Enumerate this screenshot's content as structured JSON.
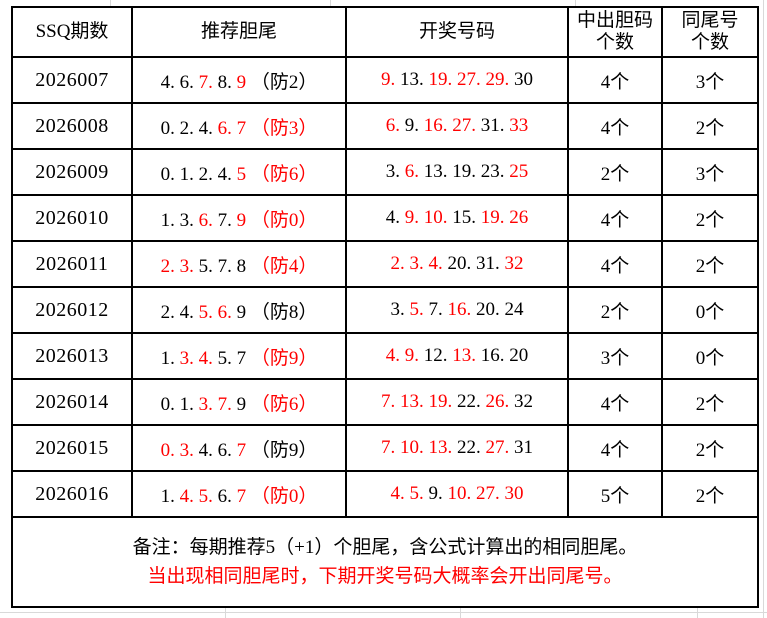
{
  "colors": {
    "red": "#ff0000",
    "black": "#000000",
    "border": "#000000",
    "gridline": "#d9d9d9"
  },
  "table": {
    "headers": [
      {
        "lines": [
          "SSQ期数"
        ]
      },
      {
        "lines": [
          "推荐胆尾"
        ]
      },
      {
        "lines": [
          "开奖号码"
        ]
      },
      {
        "lines": [
          "中出胆码",
          "个数"
        ]
      },
      {
        "lines": [
          "同尾号",
          "个数"
        ]
      }
    ],
    "rows": [
      {
        "period": "2026007",
        "tail": [
          {
            "t": "4. 6. ",
            "c": "black"
          },
          {
            "t": "7. ",
            "c": "red"
          },
          {
            "t": "8. ",
            "c": "black"
          },
          {
            "t": "9 ",
            "c": "red"
          },
          {
            "t": "（防2）",
            "c": "black"
          }
        ],
        "numbers": [
          {
            "t": "9. ",
            "c": "red"
          },
          {
            "t": "13. ",
            "c": "black"
          },
          {
            "t": "19. 27. 29. ",
            "c": "red"
          },
          {
            "t": "30",
            "c": "black"
          }
        ],
        "hit_count": "4个",
        "same_tail_count": "3个"
      },
      {
        "period": "2026008",
        "tail": [
          {
            "t": "0. 2. 4. ",
            "c": "black"
          },
          {
            "t": "6. 7 ",
            "c": "red"
          },
          {
            "t": "（防3）",
            "c": "red"
          }
        ],
        "numbers": [
          {
            "t": "6. ",
            "c": "red"
          },
          {
            "t": "9. ",
            "c": "black"
          },
          {
            "t": "16. 27. ",
            "c": "red"
          },
          {
            "t": "31. ",
            "c": "black"
          },
          {
            "t": "33",
            "c": "red"
          }
        ],
        "hit_count": "4个",
        "same_tail_count": "2个"
      },
      {
        "period": "2026009",
        "tail": [
          {
            "t": "0. 1. 2. 4. ",
            "c": "black"
          },
          {
            "t": "5 ",
            "c": "red"
          },
          {
            "t": "（防6）",
            "c": "red"
          }
        ],
        "numbers": [
          {
            "t": "3. ",
            "c": "black"
          },
          {
            "t": "6. ",
            "c": "red"
          },
          {
            "t": "13. 19. 23. ",
            "c": "black"
          },
          {
            "t": "25",
            "c": "red"
          }
        ],
        "hit_count": "2个",
        "same_tail_count": "3个"
      },
      {
        "period": "2026010",
        "tail": [
          {
            "t": "1. 3. ",
            "c": "black"
          },
          {
            "t": "6. ",
            "c": "red"
          },
          {
            "t": "7. ",
            "c": "black"
          },
          {
            "t": "9 ",
            "c": "red"
          },
          {
            "t": "（防0）",
            "c": "red"
          }
        ],
        "numbers": [
          {
            "t": "4. ",
            "c": "black"
          },
          {
            "t": "9. 10. ",
            "c": "red"
          },
          {
            "t": "15. ",
            "c": "black"
          },
          {
            "t": "19. 26",
            "c": "red"
          }
        ],
        "hit_count": "4个",
        "same_tail_count": "2个"
      },
      {
        "period": "2026011",
        "tail": [
          {
            "t": "2. 3. ",
            "c": "red"
          },
          {
            "t": "5. 7. 8 ",
            "c": "black"
          },
          {
            "t": "（防4）",
            "c": "red"
          }
        ],
        "numbers": [
          {
            "t": "2. 3. 4. ",
            "c": "red"
          },
          {
            "t": "20. 31. ",
            "c": "black"
          },
          {
            "t": "32",
            "c": "red"
          }
        ],
        "hit_count": "4个",
        "same_tail_count": "2个"
      },
      {
        "period": "2026012",
        "tail": [
          {
            "t": "2. 4. ",
            "c": "black"
          },
          {
            "t": "5. 6. ",
            "c": "red"
          },
          {
            "t": "9 ",
            "c": "black"
          },
          {
            "t": "（防8）",
            "c": "black"
          }
        ],
        "numbers": [
          {
            "t": "3. ",
            "c": "black"
          },
          {
            "t": "5. ",
            "c": "red"
          },
          {
            "t": "7. ",
            "c": "black"
          },
          {
            "t": "16. ",
            "c": "red"
          },
          {
            "t": "20. 24",
            "c": "black"
          }
        ],
        "hit_count": "2个",
        "same_tail_count": "0个"
      },
      {
        "period": "2026013",
        "tail": [
          {
            "t": "1. ",
            "c": "black"
          },
          {
            "t": "3. 4. ",
            "c": "red"
          },
          {
            "t": "5. 7 ",
            "c": "black"
          },
          {
            "t": "（防9）",
            "c": "red"
          }
        ],
        "numbers": [
          {
            "t": "4. 9. ",
            "c": "red"
          },
          {
            "t": "12. ",
            "c": "black"
          },
          {
            "t": "13. ",
            "c": "red"
          },
          {
            "t": "16. 20",
            "c": "black"
          }
        ],
        "hit_count": "3个",
        "same_tail_count": "0个"
      },
      {
        "period": "2026014",
        "tail": [
          {
            "t": "0. 1. ",
            "c": "black"
          },
          {
            "t": "3. 7. ",
            "c": "red"
          },
          {
            "t": "9 ",
            "c": "black"
          },
          {
            "t": "（防6）",
            "c": "red"
          }
        ],
        "numbers": [
          {
            "t": "7. 13. 19. ",
            "c": "red"
          },
          {
            "t": "22. ",
            "c": "black"
          },
          {
            "t": "26. ",
            "c": "red"
          },
          {
            "t": "32",
            "c": "black"
          }
        ],
        "hit_count": "4个",
        "same_tail_count": "2个"
      },
      {
        "period": "2026015",
        "tail": [
          {
            "t": "0. 3. ",
            "c": "red"
          },
          {
            "t": "4. 6. ",
            "c": "black"
          },
          {
            "t": "7 ",
            "c": "red"
          },
          {
            "t": "（防9）",
            "c": "black"
          }
        ],
        "numbers": [
          {
            "t": "7. 10. 13. ",
            "c": "red"
          },
          {
            "t": "22. ",
            "c": "black"
          },
          {
            "t": "27. ",
            "c": "red"
          },
          {
            "t": "31",
            "c": "black"
          }
        ],
        "hit_count": "4个",
        "same_tail_count": "2个"
      },
      {
        "period": "2026016",
        "tail": [
          {
            "t": "1. ",
            "c": "black"
          },
          {
            "t": "4. 5. ",
            "c": "red"
          },
          {
            "t": "6. ",
            "c": "black"
          },
          {
            "t": "7 ",
            "c": "red"
          },
          {
            "t": "（防0）",
            "c": "red"
          }
        ],
        "numbers": [
          {
            "t": "4. 5. ",
            "c": "red"
          },
          {
            "t": "9. ",
            "c": "black"
          },
          {
            "t": "10. 27. 30",
            "c": "red"
          }
        ],
        "hit_count": "5个",
        "same_tail_count": "2个"
      }
    ],
    "note_line1": "备注：每期推荐5（+1）个胆尾，含公式计算出的相同胆尾。",
    "note_line2": "当出现相同胆尾时，下期开奖号码大概率会开出同尾号。"
  }
}
